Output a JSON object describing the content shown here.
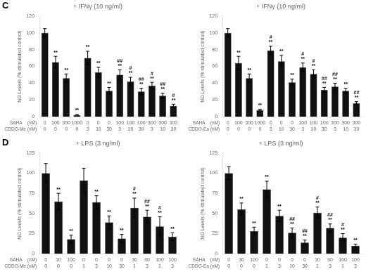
{
  "chart_data": [
    {
      "type": "bar",
      "panel_label": "C",
      "title": "+ IFNγ (10 ng/ml)",
      "ylabel": "NO Levels (% stimulated control)",
      "xlabel": [
        "SAHA    (nM)",
        "CDDO-Me (nM)"
      ],
      "categories": [
        [
          "0",
          "0"
        ],
        [
          "100",
          "0"
        ],
        [
          "300",
          "0"
        ],
        [
          "1000",
          "0"
        ],
        [
          "0",
          "3"
        ],
        [
          "0",
          "10"
        ],
        [
          "0",
          "30"
        ],
        [
          "100",
          "3"
        ],
        [
          "100",
          "10"
        ],
        [
          "100",
          "30"
        ],
        [
          "300",
          "3"
        ],
        [
          "300",
          "10"
        ],
        [
          "300",
          "30"
        ]
      ],
      "values": [
        100,
        65,
        46,
        2,
        70,
        53,
        31,
        50,
        42,
        30,
        37,
        25,
        13
      ],
      "errors": [
        5,
        7,
        5,
        1,
        8,
        6,
        4,
        6,
        5,
        4,
        4,
        3,
        2
      ],
      "annotations": [
        null,
        [
          "**"
        ],
        [
          "**"
        ],
        [
          "**"
        ],
        [
          "**"
        ],
        [
          "**"
        ],
        [
          "**"
        ],
        [
          "##",
          "**"
        ],
        [
          "#",
          "**"
        ],
        [
          "##",
          "**"
        ],
        [
          "#",
          "**"
        ],
        [
          "##",
          "**"
        ],
        [
          "#",
          "**"
        ]
      ],
      "color": "#111111",
      "ylim": [
        0,
        120
      ],
      "yticks": [
        0,
        20,
        40,
        60,
        80,
        100,
        120
      ],
      "grid": false
    },
    {
      "type": "bar",
      "title": "+ IFNγ (10 ng/ml)",
      "ylabel": "NO Levels (% stimulated control)",
      "xlabel": [
        "SAHA    (nM)",
        "CDDO-Ea (nM)"
      ],
      "categories": [
        [
          "0",
          "0"
        ],
        [
          "100",
          "0"
        ],
        [
          "300",
          "0"
        ],
        [
          "1000",
          "0"
        ],
        [
          "0",
          "3"
        ],
        [
          "0",
          "10"
        ],
        [
          "0",
          "30"
        ],
        [
          "100",
          "3"
        ],
        [
          "100",
          "10"
        ],
        [
          "100",
          "30"
        ],
        [
          "300",
          "3"
        ],
        [
          "300",
          "10"
        ],
        [
          "300",
          "30"
        ]
      ],
      "values": [
        100,
        64,
        46,
        8,
        79,
        66,
        41,
        59,
        51,
        32,
        36,
        31,
        16
      ],
      "errors": [
        5,
        8,
        5,
        1,
        5,
        7,
        4,
        5,
        5,
        3,
        4,
        3,
        2
      ],
      "annotations": [
        null,
        [
          "**"
        ],
        [
          "**"
        ],
        [
          "**"
        ],
        [
          "#",
          "**"
        ],
        [
          "**"
        ],
        [
          "**"
        ],
        [
          "#",
          "**"
        ],
        [
          "#",
          "**"
        ],
        [
          "##",
          "**"
        ],
        [
          "##",
          "**"
        ],
        [
          "**"
        ],
        [
          "##",
          "**"
        ]
      ],
      "color": "#111111",
      "ylim": [
        0,
        120
      ],
      "yticks": [
        0,
        20,
        40,
        60,
        80,
        100,
        120
      ],
      "grid": false
    },
    {
      "type": "bar",
      "panel_label": "D",
      "title": "+ LPS (3 ng/ml)",
      "ylabel": "NO Levels (% stimulated control)",
      "xlabel": [
        "SAHA    (nM)",
        "CDDO-Me (nM)"
      ],
      "categories": [
        [
          "0",
          "0"
        ],
        [
          "30",
          "0"
        ],
        [
          "100",
          "0"
        ],
        [
          "0",
          "1"
        ],
        [
          "0",
          "3"
        ],
        [
          "0",
          "10"
        ],
        [
          "0",
          "30"
        ],
        [
          "30",
          "1"
        ],
        [
          "30",
          "3"
        ],
        [
          "100",
          "1"
        ],
        [
          "100",
          "3"
        ]
      ],
      "values": [
        100,
        65,
        18,
        91,
        64,
        39,
        19,
        57,
        46,
        34,
        21
      ],
      "errors": [
        12,
        10,
        5,
        15,
        8,
        8,
        5,
        12,
        8,
        12,
        5
      ],
      "annotations": [
        null,
        [
          "**"
        ],
        [
          "**"
        ],
        null,
        [
          "**"
        ],
        [
          "**"
        ],
        [
          "**"
        ],
        [
          "#",
          "**"
        ],
        [
          "##",
          "**"
        ],
        [
          "#",
          "**"
        ],
        [
          "**"
        ]
      ],
      "color": "#111111",
      "ylim": [
        0,
        125
      ],
      "yticks": [
        0,
        25,
        50,
        75,
        100,
        125
      ],
      "grid": false
    },
    {
      "type": "bar",
      "title": "+ LPS (3 ng/ml)",
      "ylabel": "NO Levels (% stimulated control)",
      "xlabel": [
        "SAHA    (nM)",
        "CDDO-Ea (nM)"
      ],
      "categories": [
        [
          "0",
          "0"
        ],
        [
          "30",
          "0"
        ],
        [
          "100",
          "0"
        ],
        [
          "0",
          "1"
        ],
        [
          "0",
          "3"
        ],
        [
          "0",
          "10"
        ],
        [
          "0",
          "30"
        ],
        [
          "30",
          "1"
        ],
        [
          "30",
          "3"
        ],
        [
          "100",
          "1"
        ],
        [
          "100",
          "3"
        ]
      ],
      "values": [
        100,
        55,
        28,
        80,
        47,
        26,
        14,
        51,
        32,
        20,
        10
      ],
      "errors": [
        8,
        8,
        5,
        10,
        7,
        6,
        3,
        7,
        5,
        5,
        2
      ],
      "annotations": [
        null,
        [
          "**"
        ],
        [
          "**"
        ],
        [
          "**"
        ],
        [
          "**"
        ],
        [
          "##",
          "**"
        ],
        [
          "##",
          "**"
        ],
        [
          "#",
          "**"
        ],
        [
          "##",
          "**"
        ],
        [
          "#",
          "**"
        ],
        [
          "**"
        ]
      ],
      "color": "#111111",
      "ylim": [
        0,
        125
      ],
      "yticks": [
        0,
        25,
        50,
        75,
        100,
        125
      ],
      "grid": false
    }
  ]
}
